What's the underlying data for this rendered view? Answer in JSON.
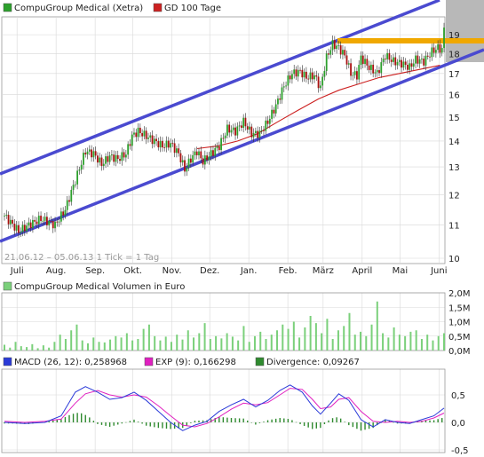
{
  "legend": {
    "price_label": "CompuGroup Medical (Xetra)",
    "ma_label": "GD 100 Tage",
    "volume_label": "CompuGroup Medical Volumen in Euro",
    "macd_label": "MACD (26, 12): 0,258968",
    "exp_label": "EXP (9): 0,166298",
    "div_label": "Divergence: 0,09267"
  },
  "info_text": "21.06.12 – 05.06.13   1 Tick = 1 Tag",
  "colors": {
    "candle_up": "#2ca02c",
    "candle_down": "#aa1010",
    "ma": "#cc2020",
    "channel": "#4a4ad0",
    "resistance": "#f0a800",
    "volume": "#7bd07b",
    "macd": "#2a3ad8",
    "exp": "#e020c0",
    "divergence": "#2f8a2f"
  },
  "chart_data": [
    {
      "type": "line",
      "title": "CompuGroup Medical (Xetra)",
      "x_range": [
        "21.06.12",
        "05.06.13"
      ],
      "x_ticks": [
        "Juli",
        "Aug.",
        "Sep.",
        "Okt.",
        "Nov.",
        "Dez.",
        "Jan.",
        "Feb.",
        "März",
        "April",
        "Mai",
        "Juni"
      ],
      "y_ticks": [
        10,
        11,
        12,
        13,
        14,
        15,
        16,
        17,
        18,
        19
      ],
      "y_scale": "log",
      "ylim": [
        10,
        20
      ],
      "series": [
        {
          "name": "CompuGroup Medical (Xetra)",
          "points": [
            [
              0,
              11.3
            ],
            [
              7,
              10.8
            ],
            [
              12,
              11.0
            ],
            [
              18,
              11.2
            ],
            [
              25,
              11.0
            ],
            [
              30,
              11.5
            ],
            [
              35,
              12.5
            ],
            [
              40,
              13.6
            ],
            [
              44,
              13.5
            ],
            [
              48,
              13.1
            ],
            [
              52,
              13.4
            ],
            [
              56,
              13.3
            ],
            [
              60,
              13.5
            ],
            [
              63,
              14.2
            ],
            [
              66,
              14.4
            ],
            [
              70,
              14.2
            ],
            [
              74,
              14.0
            ],
            [
              78,
              13.8
            ],
            [
              82,
              13.9
            ],
            [
              86,
              13.5
            ],
            [
              89,
              12.9
            ],
            [
              92,
              13.3
            ],
            [
              95,
              13.6
            ],
            [
              98,
              13.2
            ],
            [
              102,
              13.5
            ],
            [
              106,
              13.8
            ],
            [
              110,
              14.5
            ],
            [
              114,
              14.4
            ],
            [
              118,
              14.8
            ],
            [
              122,
              14.3
            ],
            [
              126,
              14.3
            ],
            [
              130,
              14.8
            ],
            [
              134,
              15.5
            ],
            [
              138,
              16.4
            ],
            [
              142,
              17.0
            ],
            [
              146,
              17.1
            ],
            [
              149,
              16.8
            ],
            [
              153,
              16.9
            ],
            [
              156,
              16.3
            ],
            [
              159,
              17.8
            ],
            [
              162,
              18.5
            ],
            [
              165,
              18.3
            ],
            [
              168,
              17.9
            ],
            [
              171,
              17.0
            ],
            [
              174,
              16.9
            ],
            [
              176,
              17.8
            ],
            [
              180,
              17.3
            ],
            [
              184,
              17.0
            ],
            [
              188,
              17.9
            ],
            [
              192,
              17.6
            ],
            [
              196,
              17.5
            ],
            [
              200,
              17.3
            ],
            [
              203,
              17.7
            ],
            [
              207,
              17.6
            ],
            [
              211,
              18.1
            ],
            [
              214,
              18.3
            ],
            [
              216,
              18.2
            ],
            [
              217,
              19.3
            ]
          ]
        },
        {
          "name": "GD 100 Tage",
          "points": [
            [
              95,
              13.7
            ],
            [
              105,
              13.8
            ],
            [
              115,
              14.0
            ],
            [
              125,
              14.3
            ],
            [
              135,
              14.8
            ],
            [
              145,
              15.3
            ],
            [
              155,
              15.8
            ],
            [
              165,
              16.2
            ],
            [
              175,
              16.5
            ],
            [
              185,
              16.8
            ],
            [
              195,
              17.0
            ],
            [
              205,
              17.2
            ],
            [
              215,
              17.4
            ]
          ]
        }
      ]
    },
    {
      "type": "bar",
      "title": "CompuGroup Medical Volumen in Euro",
      "y_ticks": [
        "0,0M",
        "0,5M",
        "1,0M",
        "1,5M",
        "2,0M"
      ],
      "ylim": [
        0,
        2.0
      ],
      "y_unit": "M Euro",
      "values": [
        0.2,
        0.1,
        0.3,
        0.15,
        0.12,
        0.22,
        0.08,
        0.18,
        0.1,
        0.3,
        0.55,
        0.4,
        0.7,
        0.9,
        0.35,
        0.25,
        0.45,
        0.3,
        0.28,
        0.38,
        0.5,
        0.45,
        0.6,
        0.35,
        0.4,
        0.75,
        0.9,
        0.5,
        0.35,
        0.48,
        0.3,
        0.55,
        0.38,
        0.7,
        0.45,
        0.6,
        0.95,
        0.4,
        0.5,
        0.42,
        0.6,
        0.48,
        0.35,
        0.85,
        0.3,
        0.5,
        0.65,
        0.4,
        0.55,
        0.7,
        0.9,
        0.75,
        1.0,
        0.45,
        0.8,
        1.2,
        0.95,
        0.6,
        1.1,
        0.4,
        0.7,
        0.85,
        1.3,
        0.55,
        0.65,
        0.5,
        0.9,
        1.7,
        0.6,
        0.45,
        0.8,
        0.55,
        0.5,
        0.65,
        0.7,
        0.4,
        0.55,
        0.35,
        0.5,
        0.6
      ]
    },
    {
      "type": "line",
      "title": "MACD (26, 12)",
      "y_ticks": [
        "-0,5",
        "0,0",
        "0,5"
      ],
      "ylim": [
        -0.5,
        0.9
      ],
      "series": [
        {
          "name": "MACD (26, 12)",
          "points": [
            [
              0,
              0.0
            ],
            [
              10,
              -0.02
            ],
            [
              20,
              0.0
            ],
            [
              28,
              0.12
            ],
            [
              35,
              0.55
            ],
            [
              40,
              0.65
            ],
            [
              46,
              0.55
            ],
            [
              52,
              0.42
            ],
            [
              58,
              0.45
            ],
            [
              64,
              0.55
            ],
            [
              70,
              0.4
            ],
            [
              76,
              0.2
            ],
            [
              82,
              0.0
            ],
            [
              88,
              -0.15
            ],
            [
              94,
              -0.05
            ],
            [
              100,
              0.02
            ],
            [
              106,
              0.2
            ],
            [
              112,
              0.32
            ],
            [
              118,
              0.42
            ],
            [
              124,
              0.28
            ],
            [
              130,
              0.4
            ],
            [
              136,
              0.58
            ],
            [
              141,
              0.68
            ],
            [
              147,
              0.55
            ],
            [
              152,
              0.3
            ],
            [
              156,
              0.15
            ],
            [
              161,
              0.35
            ],
            [
              165,
              0.52
            ],
            [
              170,
              0.4
            ],
            [
              176,
              0.05
            ],
            [
              182,
              -0.08
            ],
            [
              188,
              0.05
            ],
            [
              194,
              0.0
            ],
            [
              200,
              -0.02
            ],
            [
              206,
              0.05
            ],
            [
              212,
              0.12
            ],
            [
              217,
              0.26
            ]
          ]
        },
        {
          "name": "EXP (9)",
          "points": [
            [
              0,
              0.02
            ],
            [
              10,
              0.0
            ],
            [
              20,
              0.02
            ],
            [
              28,
              0.06
            ],
            [
              35,
              0.35
            ],
            [
              40,
              0.52
            ],
            [
              46,
              0.58
            ],
            [
              52,
              0.5
            ],
            [
              58,
              0.46
            ],
            [
              64,
              0.5
            ],
            [
              70,
              0.46
            ],
            [
              76,
              0.3
            ],
            [
              82,
              0.12
            ],
            [
              88,
              -0.05
            ],
            [
              94,
              -0.08
            ],
            [
              100,
              -0.02
            ],
            [
              106,
              0.1
            ],
            [
              112,
              0.24
            ],
            [
              118,
              0.35
            ],
            [
              124,
              0.32
            ],
            [
              130,
              0.36
            ],
            [
              136,
              0.5
            ],
            [
              141,
              0.62
            ],
            [
              147,
              0.6
            ],
            [
              152,
              0.42
            ],
            [
              156,
              0.25
            ],
            [
              161,
              0.28
            ],
            [
              165,
              0.42
            ],
            [
              170,
              0.45
            ],
            [
              176,
              0.2
            ],
            [
              182,
              0.02
            ],
            [
              188,
              0.0
            ],
            [
              194,
              0.02
            ],
            [
              200,
              0.0
            ],
            [
              206,
              0.02
            ],
            [
              212,
              0.08
            ],
            [
              217,
              0.17
            ]
          ]
        }
      ],
      "divergence": [
        [
          4,
          -0.02
        ],
        [
          12,
          -0.03
        ],
        [
          20,
          0.01
        ],
        [
          28,
          0.06
        ],
        [
          33,
          0.15
        ],
        [
          37,
          0.18
        ],
        [
          41,
          0.12
        ],
        [
          46,
          -0.03
        ],
        [
          52,
          -0.08
        ],
        [
          58,
          -0.02
        ],
        [
          64,
          0.05
        ],
        [
          70,
          -0.06
        ],
        [
          76,
          -0.1
        ],
        [
          82,
          -0.12
        ],
        [
          88,
          -0.1
        ],
        [
          94,
          0.03
        ],
        [
          100,
          0.04
        ],
        [
          106,
          0.1
        ],
        [
          112,
          0.08
        ],
        [
          118,
          0.07
        ],
        [
          124,
          -0.04
        ],
        [
          130,
          0.04
        ],
        [
          136,
          0.08
        ],
        [
          141,
          0.06
        ],
        [
          147,
          -0.05
        ],
        [
          152,
          -0.12
        ],
        [
          156,
          -0.1
        ],
        [
          161,
          0.07
        ],
        [
          165,
          0.1
        ],
        [
          170,
          -0.05
        ],
        [
          176,
          -0.15
        ],
        [
          182,
          -0.1
        ],
        [
          188,
          0.05
        ],
        [
          194,
          -0.02
        ],
        [
          200,
          -0.02
        ],
        [
          206,
          0.03
        ],
        [
          212,
          0.04
        ],
        [
          217,
          0.09
        ]
      ]
    }
  ]
}
